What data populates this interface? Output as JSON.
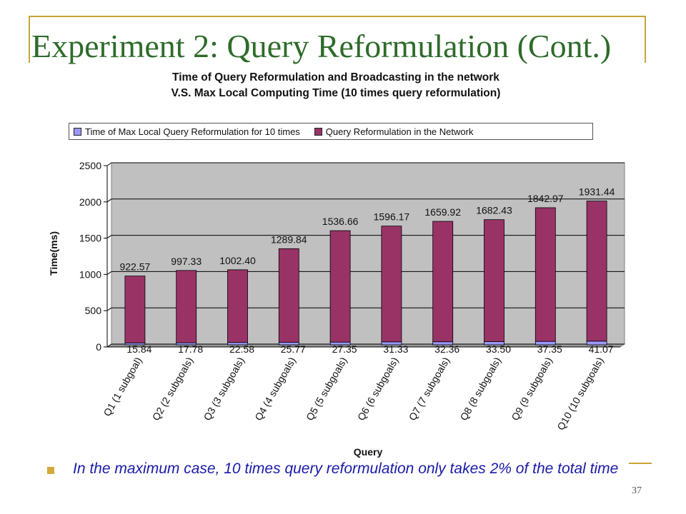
{
  "slide": {
    "title": "Experiment 2: Query Reformulation (Cont.)",
    "bullet": "In the maximum case, 10 times query reformulation only takes 2% of the total time",
    "page_number": "37",
    "colors": {
      "title": "#2e6b2a",
      "accent": "#c9a23a",
      "bullet_text": "#1a1aa8"
    }
  },
  "chart_data": {
    "type": "bar",
    "stacked": true,
    "title_line1": "Time of Query Reformulation and Broadcasting in the network",
    "title_line2": "V.S. Max Local Computing Time (10 times query reformulation)",
    "xlabel": "Query",
    "ylabel": "Time(ms)",
    "ylim": [
      0,
      2500
    ],
    "yticks": [
      "0",
      "500",
      "1000",
      "1500",
      "2000",
      "2500"
    ],
    "grid": true,
    "legend_position": "top",
    "categories": [
      "Q1 (1 subgoal)",
      "Q2 (2 subgoals)",
      "Q3 (3 subgoals)",
      "Q4 (4 subgoals)",
      "Q5 (5 subgoals)",
      "Q6 (6 subgoals)",
      "Q7 (7 subgoals)",
      "Q8 (8 subgoals)",
      "Q9 (9 subgoals)",
      "Q10 (10 subgoals)"
    ],
    "series": [
      {
        "name": "Time of Max Local Query Reformulation for 10 times",
        "color": "#9999ff",
        "values": [
          15.84,
          17.78,
          22.58,
          25.77,
          27.35,
          31.33,
          32.36,
          33.5,
          37.35,
          41.07
        ],
        "labels": [
          "15.84",
          "17.78",
          "22.58",
          "25.77",
          "27.35",
          "31.33",
          "32.36",
          "33.50",
          "37.35",
          "41.07"
        ]
      },
      {
        "name": "Query Reformulation in the Network",
        "color": "#993366",
        "values": [
          922.57,
          997.33,
          1002.4,
          1289.84,
          1536.66,
          1596.17,
          1659.92,
          1682.43,
          1842.97,
          1931.44
        ],
        "labels": [
          "922.57",
          "997.33",
          "1002.40",
          "1289.84",
          "1536.66",
          "1596.17",
          "1659.92",
          "1682.43",
          "1842.97",
          "1931.44"
        ]
      }
    ],
    "plot_background": "#c0c0c0"
  }
}
